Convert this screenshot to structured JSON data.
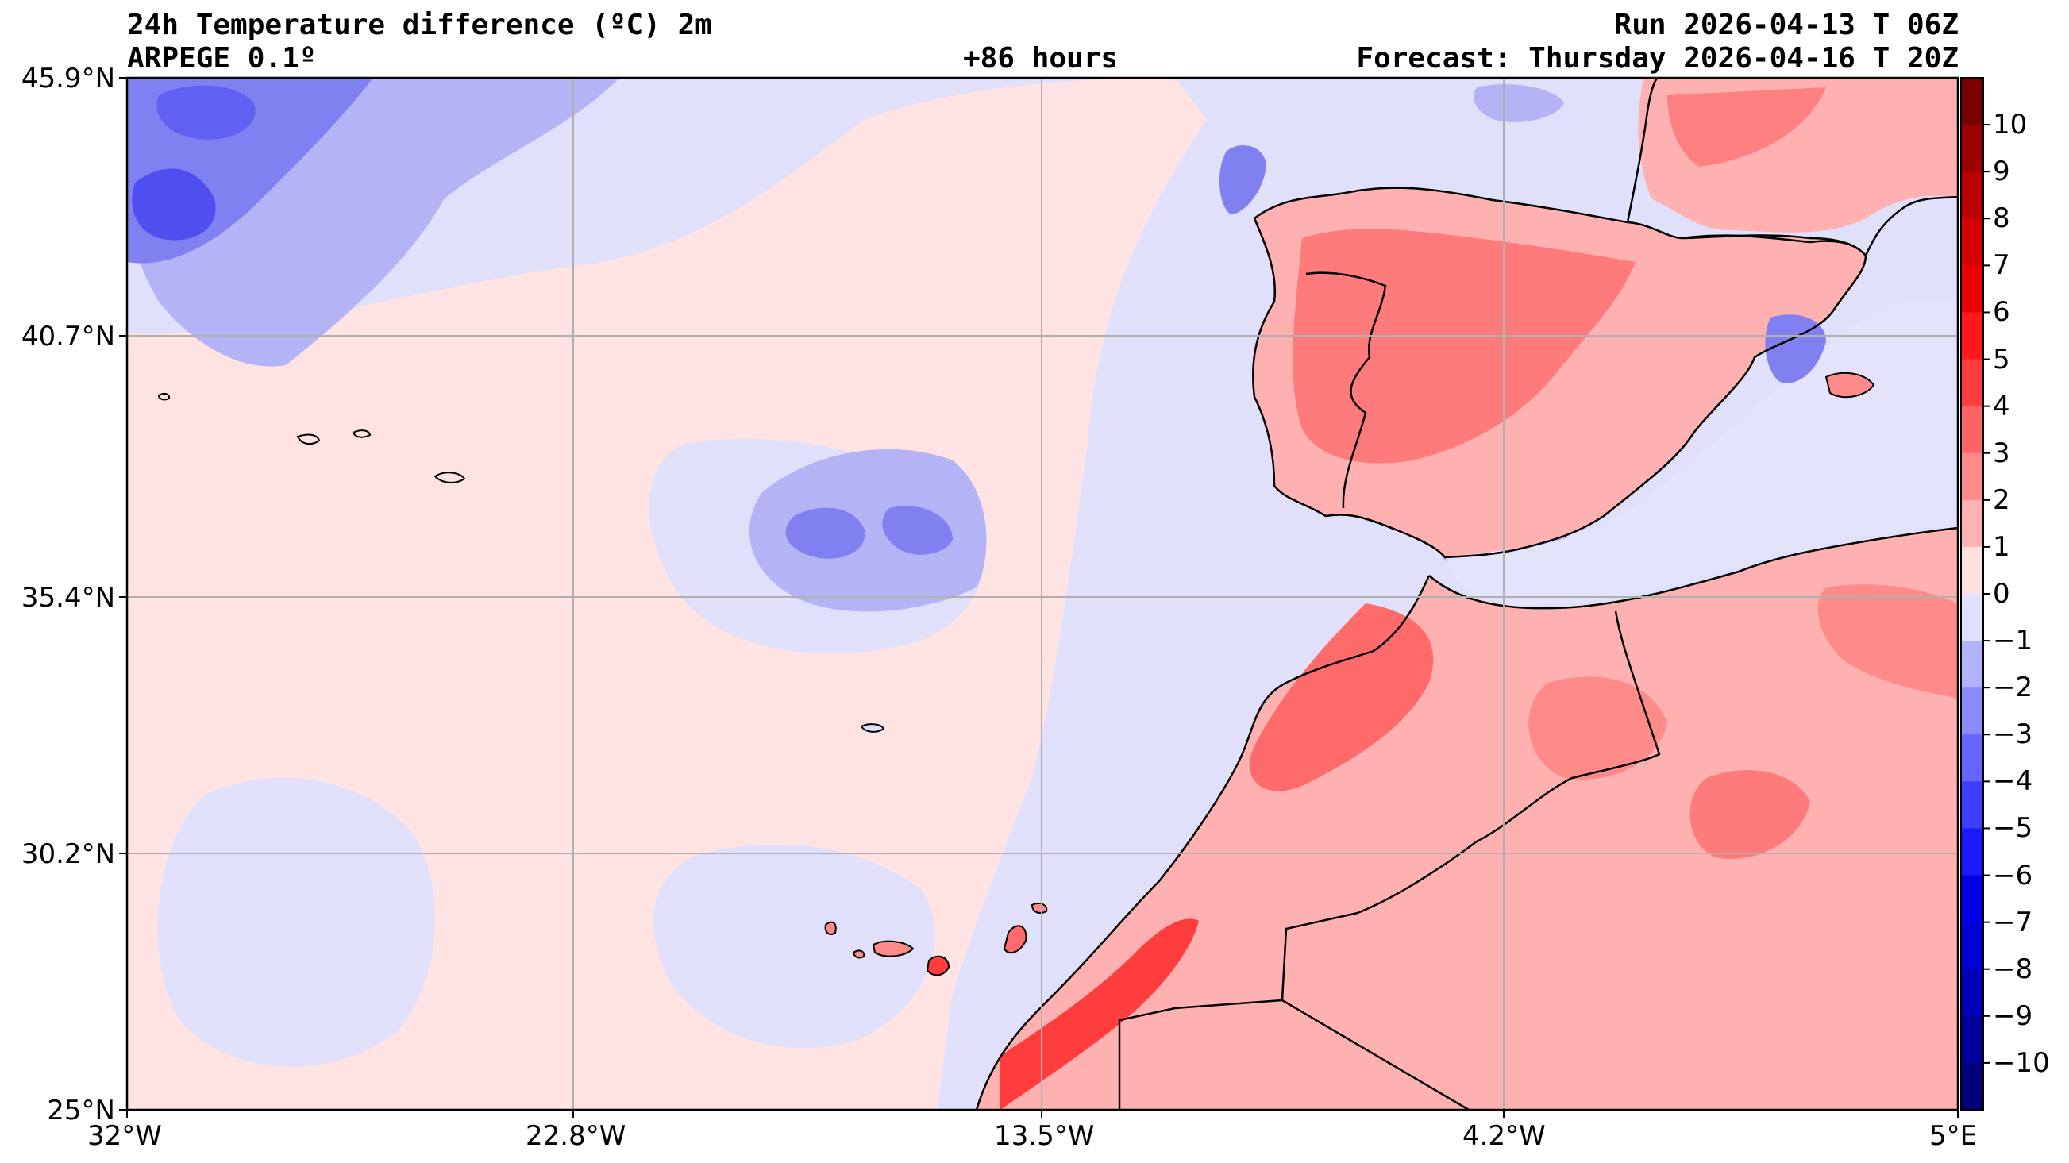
{
  "header": {
    "title": "24h Temperature difference (ºC) 2m",
    "model": "ARPEGE 0.1º",
    "lead": "+86 hours",
    "run": "Run 2026-04-13 T 06Z",
    "forecast": "Forecast: Thursday 2026-04-16 T 20Z"
  },
  "axes": {
    "lat_labels": [
      "45.9°N",
      "40.7°N",
      "35.4°N",
      "30.2°N",
      "25°N"
    ],
    "lon_labels": [
      "32°W",
      "22.8°W",
      "13.5°W",
      "4.2°W",
      "5°E"
    ]
  },
  "colorbar": {
    "labels": [
      "10",
      "9",
      "8",
      "7",
      "6",
      "5",
      "4",
      "3",
      "2",
      "1",
      "0",
      "−1",
      "−2",
      "−3",
      "−4",
      "−5",
      "−6",
      "−7",
      "−8",
      "−9",
      "−10"
    ],
    "colors": [
      "#7a0000",
      "#9b0000",
      "#b80000",
      "#d20000",
      "#e80000",
      "#ff1a1a",
      "#ff3d3d",
      "#ff6464",
      "#ff8a8a",
      "#ffb2b2",
      "#ffe0e0",
      "#e0e0ff",
      "#b2b2ff",
      "#8a8aff",
      "#6464ff",
      "#3d3dff",
      "#1a1aff",
      "#0000e8",
      "#0000d2",
      "#0000b8",
      "#00009b",
      "#00007a"
    ]
  },
  "map": {
    "ocean_warm": "#ffe3e3",
    "ocean_cool": "#e0e0fb",
    "land_warm": "#ffb0b0",
    "land_hot": "#ff6a6a",
    "cold_1": "#b3b3f6",
    "cold_2": "#8080f0",
    "cold_3": "#4f4ff0"
  }
}
